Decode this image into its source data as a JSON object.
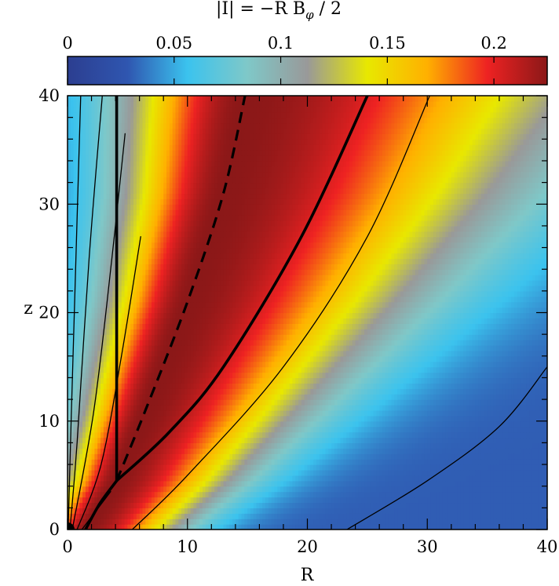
{
  "chart_data": {
    "type": "heatmap",
    "colorbar": {
      "title": "|I| = −R B",
      "title_subscript": "φ",
      "title_suffix": " / 2",
      "position": "top",
      "range": [
        0,
        0.225
      ],
      "ticks": [
        {
          "value": 0,
          "label": "0"
        },
        {
          "value": 0.05,
          "label": "0.05"
        },
        {
          "value": 0.1,
          "label": "0.1"
        },
        {
          "value": 0.15,
          "label": "0.15"
        },
        {
          "value": 0.2,
          "label": "0.2"
        }
      ],
      "colormap": [
        "#2c3e90",
        "#2f56b0",
        "#3bc3ee",
        "#7fc8c8",
        "#999999",
        "#e8e800",
        "#ffb000",
        "#ee2222",
        "#8b1818"
      ]
    },
    "xlabel": "R",
    "ylabel": "z",
    "xlim": [
      0,
      40
    ],
    "ylim": [
      0,
      40
    ],
    "xticks": [
      {
        "value": 0,
        "label": "0"
      },
      {
        "value": 10,
        "label": "10"
      },
      {
        "value": 20,
        "label": "20"
      },
      {
        "value": 30,
        "label": "30"
      },
      {
        "value": 40,
        "label": "40"
      }
    ],
    "yticks": [
      {
        "value": 0,
        "label": "0"
      },
      {
        "value": 10,
        "label": "10"
      },
      {
        "value": 20,
        "label": "20"
      },
      {
        "value": 30,
        "label": "30"
      },
      {
        "value": 40,
        "label": "40"
      }
    ],
    "field": {
      "peak_curve": [
        [
          1.5,
          0
        ],
        [
          4,
          4.5
        ],
        [
          6.5,
          11
        ],
        [
          10,
          21
        ],
        [
          13,
          31
        ],
        [
          14.8,
          40
        ]
      ],
      "peak_value": 0.225,
      "background_value": 0.03,
      "inner_width": [
        [
          0,
          2.6
        ],
        [
          40,
          7.2
        ]
      ],
      "outer_width": [
        [
          0,
          5.5
        ],
        [
          40,
          20
        ]
      ]
    },
    "contours": [
      {
        "id": "field-line-1",
        "style": "thin",
        "points": [
          [
            0.05,
            0
          ],
          [
            0.3,
            10
          ],
          [
            0.7,
            25
          ],
          [
            1.1,
            40
          ]
        ]
      },
      {
        "id": "field-line-2",
        "style": "thin",
        "points": [
          [
            0.2,
            0
          ],
          [
            0.8,
            8
          ],
          [
            1.8,
            25
          ],
          [
            2.9,
            40
          ]
        ]
      },
      {
        "id": "field-line-3",
        "style": "thin",
        "points": [
          [
            0.4,
            0
          ],
          [
            2.2,
            11
          ],
          [
            3.7,
            25
          ],
          [
            4.8,
            36.5
          ]
        ]
      },
      {
        "id": "field-line-4",
        "style": "thin",
        "points": [
          [
            0.8,
            0
          ],
          [
            2.8,
            6
          ],
          [
            4.5,
            16
          ],
          [
            6.1,
            27
          ]
        ]
      },
      {
        "id": "field-line-5",
        "style": "thin",
        "points": [
          [
            1.2,
            0
          ],
          [
            3.6,
            3.5
          ]
        ]
      },
      {
        "id": "separatrix-vertical",
        "style": "thick",
        "points": [
          [
            4.1,
            40
          ],
          [
            4.1,
            4.5
          ]
        ]
      },
      {
        "id": "separatrix-lower",
        "style": "thick",
        "points": [
          [
            1.5,
            0
          ],
          [
            2.7,
            2.4
          ],
          [
            4.1,
            4.5
          ]
        ]
      },
      {
        "id": "separatrix-outer",
        "style": "thick",
        "points": [
          [
            4.1,
            4.5
          ],
          [
            8.5,
            9
          ],
          [
            13,
            15
          ],
          [
            19.5,
            27
          ],
          [
            25,
            40
          ]
        ]
      },
      {
        "id": "peak-current-line",
        "style": "dashed",
        "points": [
          [
            4.1,
            4.5
          ],
          [
            6.5,
            11
          ],
          [
            10,
            21
          ],
          [
            13,
            31
          ],
          [
            14.8,
            40
          ]
        ]
      },
      {
        "id": "field-line-6",
        "style": "thin",
        "points": [
          [
            5.4,
            0
          ],
          [
            10,
            5
          ],
          [
            18,
            15
          ],
          [
            25,
            27
          ],
          [
            30.2,
            40
          ]
        ]
      },
      {
        "id": "field-line-7",
        "style": "thin",
        "points": [
          [
            23.3,
            0
          ],
          [
            30,
            4.5
          ],
          [
            36,
            9.5
          ],
          [
            40,
            15
          ]
        ]
      }
    ],
    "origin_marker": {
      "x": 0,
      "y": 0
    }
  }
}
